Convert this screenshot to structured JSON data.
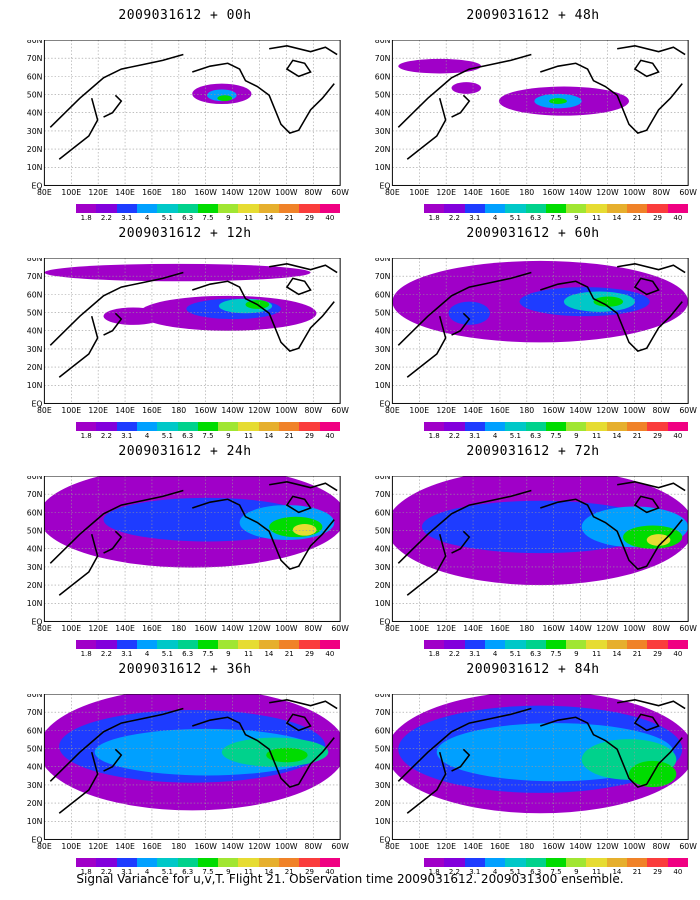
{
  "panels": [
    {
      "title": "2009031612 + 00h",
      "extent": 0
    },
    {
      "title": "2009031612 + 48h",
      "extent": 4
    },
    {
      "title": "2009031612 + 12h",
      "extent": 1
    },
    {
      "title": "2009031612 + 60h",
      "extent": 5
    },
    {
      "title": "2009031612 + 24h",
      "extent": 2
    },
    {
      "title": "2009031612 + 72h",
      "extent": 6
    },
    {
      "title": "2009031612 + 36h",
      "extent": 3
    },
    {
      "title": "2009031612 + 84h",
      "extent": 7
    }
  ],
  "lat_labels": [
    "80N",
    "70N",
    "60N",
    "50N",
    "40N",
    "30N",
    "20N",
    "10N",
    "EQ"
  ],
  "lon_labels": [
    "80E",
    "100E",
    "120E",
    "140E",
    "160E",
    "180",
    "160W",
    "140W",
    "120W",
    "100W",
    "80W",
    "60W"
  ],
  "colorbar": {
    "labels": [
      "1.8",
      "2.2",
      "3.1",
      "4",
      "5.1",
      "6.3",
      "7.5",
      "9",
      "11",
      "14",
      "21",
      "29",
      "40"
    ],
    "colors": [
      "#a000c8",
      "#8200dc",
      "#1e3cff",
      "#00a0ff",
      "#00c8c8",
      "#00d28c",
      "#00dc00",
      "#a0e632",
      "#e6dc32",
      "#e6af2d",
      "#f08228",
      "#fa3c3c",
      "#f00082"
    ]
  },
  "caption": "Signal Variance for u,v,T. Flight 21. Observation time 2009031612. 2009031300 ensemble."
}
